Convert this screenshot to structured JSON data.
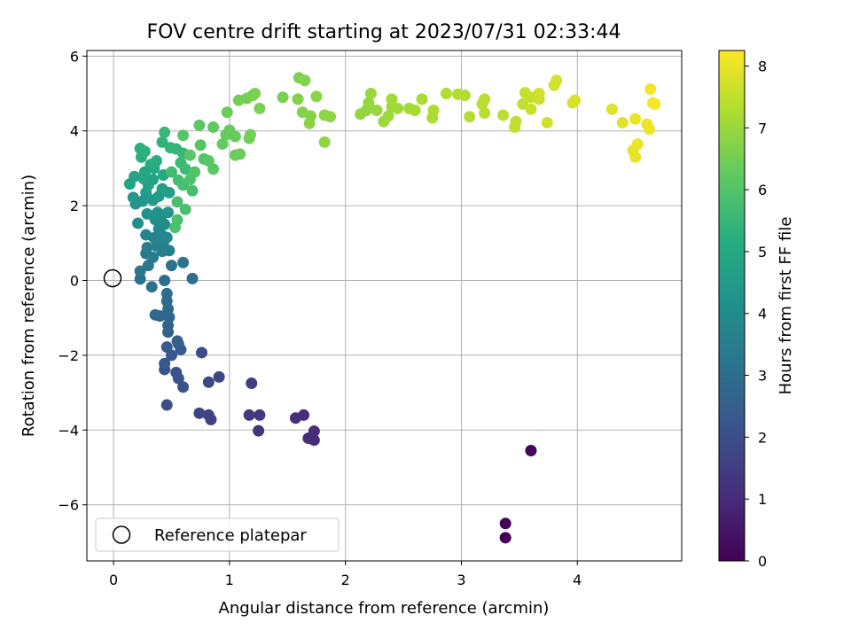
{
  "chart_data": {
    "type": "scatter",
    "title": "FOV centre drift starting at 2023/07/31 02:33:44",
    "xlabel": "Angular distance from reference (arcmin)",
    "ylabel": "Rotation from reference (arcmin)",
    "xlim": [
      -0.23,
      4.9
    ],
    "ylim": [
      -7.5,
      6.15
    ],
    "xticks": [
      "0",
      "1",
      "2",
      "3",
      "4"
    ],
    "yticks": [
      "−6",
      "−4",
      "−2",
      "0",
      "2",
      "4",
      "6"
    ],
    "grid": true,
    "legend": {
      "label": "Reference platepar",
      "location": "lower left"
    },
    "reference_point": [
      0,
      0
    ],
    "colorbar": {
      "label": "Hours from first FF file",
      "colormap": "viridis",
      "range": [
        0,
        8.25
      ],
      "ticks": [
        "0",
        "1",
        "2",
        "3",
        "4",
        "5",
        "6",
        "7",
        "8"
      ]
    },
    "points": [
      [
        3.38,
        -6.88,
        0.0
      ],
      [
        3.38,
        -6.5,
        0.05
      ],
      [
        3.6,
        -4.55,
        0.15
      ],
      [
        1.73,
        -4.27,
        1.0
      ],
      [
        1.68,
        -4.22,
        1.02
      ],
      [
        1.73,
        -4.03,
        1.05
      ],
      [
        1.64,
        -3.6,
        1.1
      ],
      [
        1.57,
        -3.68,
        1.12
      ],
      [
        1.25,
        -4.02,
        1.3
      ],
      [
        1.26,
        -3.6,
        1.35
      ],
      [
        1.17,
        -3.6,
        1.4
      ],
      [
        1.19,
        -2.75,
        1.5
      ],
      [
        0.84,
        -3.72,
        1.6
      ],
      [
        0.82,
        -3.6,
        1.65
      ],
      [
        0.74,
        -3.55,
        1.7
      ],
      [
        0.91,
        -2.58,
        1.75
      ],
      [
        0.82,
        -2.72,
        1.8
      ],
      [
        0.76,
        -1.93,
        1.9
      ],
      [
        0.46,
        -3.33,
        2.0
      ],
      [
        0.6,
        -2.85,
        2.05
      ],
      [
        0.56,
        -2.62,
        2.1
      ],
      [
        0.54,
        -2.46,
        2.15
      ],
      [
        0.44,
        -2.38,
        2.2
      ],
      [
        0.44,
        -2.22,
        2.25
      ],
      [
        0.5,
        -2.0,
        2.3
      ],
      [
        0.58,
        -1.85,
        2.35
      ],
      [
        0.46,
        -1.78,
        2.4
      ],
      [
        0.56,
        -1.7,
        2.45
      ],
      [
        0.55,
        -1.62,
        2.5
      ],
      [
        0.47,
        -1.38,
        2.6
      ],
      [
        0.47,
        -1.2,
        2.65
      ],
      [
        0.48,
        -0.98,
        2.7
      ],
      [
        0.4,
        -0.95,
        2.75
      ],
      [
        0.36,
        -0.92,
        2.8
      ],
      [
        0.47,
        -0.76,
        2.85
      ],
      [
        0.46,
        -0.55,
        2.9
      ],
      [
        0.46,
        -0.35,
        2.95
      ],
      [
        0.44,
        0.0,
        3.0
      ],
      [
        0.68,
        0.05,
        3.05
      ],
      [
        0.23,
        0.04,
        3.1
      ],
      [
        0.33,
        -0.17,
        3.12
      ],
      [
        0.6,
        0.48,
        3.15
      ],
      [
        0.5,
        0.4,
        3.2
      ],
      [
        0.23,
        0.25,
        3.25
      ],
      [
        0.3,
        0.4,
        3.3
      ],
      [
        0.28,
        0.72,
        3.35
      ],
      [
        0.34,
        0.62,
        3.4
      ],
      [
        0.42,
        0.78,
        3.45
      ],
      [
        0.48,
        0.8,
        3.5
      ],
      [
        0.29,
        0.88,
        3.55
      ],
      [
        0.37,
        0.92,
        3.6
      ],
      [
        0.43,
        1.02,
        3.65
      ],
      [
        0.35,
        1.14,
        3.7
      ],
      [
        0.28,
        1.22,
        3.75
      ],
      [
        0.42,
        1.2,
        3.8
      ],
      [
        0.46,
        1.15,
        3.85
      ],
      [
        0.39,
        1.38,
        3.9
      ],
      [
        0.44,
        1.5,
        3.95
      ],
      [
        0.36,
        1.63,
        4.0
      ],
      [
        0.21,
        1.53,
        4.05
      ],
      [
        0.41,
        1.7,
        4.1
      ],
      [
        0.29,
        1.78,
        4.15
      ],
      [
        0.38,
        1.82,
        4.2
      ],
      [
        0.47,
        1.82,
        4.25
      ],
      [
        0.19,
        2.05,
        4.3
      ],
      [
        0.25,
        2.12,
        4.35
      ],
      [
        0.34,
        2.15,
        4.4
      ],
      [
        0.17,
        2.22,
        4.45
      ],
      [
        0.39,
        2.25,
        4.5
      ],
      [
        0.28,
        2.35,
        4.55
      ],
      [
        0.48,
        2.35,
        4.6
      ],
      [
        0.42,
        2.45,
        4.65
      ],
      [
        0.3,
        2.55,
        4.7
      ],
      [
        0.34,
        2.7,
        4.75
      ],
      [
        0.14,
        2.58,
        4.8
      ],
      [
        0.18,
        2.78,
        4.85
      ],
      [
        0.26,
        2.72,
        4.9
      ],
      [
        0.27,
        2.9,
        4.95
      ],
      [
        0.35,
        3.0,
        5.0
      ],
      [
        0.43,
        2.82,
        5.05
      ],
      [
        0.32,
        3.1,
        5.1
      ],
      [
        0.37,
        3.2,
        5.15
      ],
      [
        0.24,
        3.3,
        5.2
      ],
      [
        0.23,
        3.53,
        5.25
      ],
      [
        0.27,
        3.45,
        5.3
      ],
      [
        0.42,
        3.7,
        5.35
      ],
      [
        0.49,
        3.55,
        5.4
      ],
      [
        0.54,
        3.52,
        5.45
      ],
      [
        0.6,
        3.4,
        5.5
      ],
      [
        0.44,
        3.96,
        5.55
      ],
      [
        0.58,
        3.15,
        5.6
      ],
      [
        0.62,
        2.98,
        5.65
      ],
      [
        0.5,
        2.9,
        5.7
      ],
      [
        0.56,
        2.68,
        5.72
      ],
      [
        0.6,
        2.55,
        5.75
      ],
      [
        0.68,
        2.4,
        5.8
      ],
      [
        0.55,
        2.1,
        5.82
      ],
      [
        0.62,
        1.9,
        5.85
      ],
      [
        0.55,
        1.62,
        5.88
      ],
      [
        0.53,
        1.42,
        5.9
      ],
      [
        0.66,
        2.7,
        5.95
      ],
      [
        0.7,
        2.9,
        5.98
      ],
      [
        0.78,
        3.25,
        6.0
      ],
      [
        0.75,
        3.62,
        6.05
      ],
      [
        0.6,
        3.88,
        6.08
      ],
      [
        0.66,
        3.35,
        6.1
      ],
      [
        0.82,
        3.2,
        6.12
      ],
      [
        0.86,
        2.98,
        6.15
      ],
      [
        0.74,
        4.15,
        6.2
      ],
      [
        0.86,
        4.1,
        6.25
      ],
      [
        0.94,
        3.65,
        6.28
      ],
      [
        0.97,
        3.9,
        6.3
      ],
      [
        1.0,
        4.02,
        6.32
      ],
      [
        1.05,
        3.85,
        6.35
      ],
      [
        0.98,
        4.5,
        6.38
      ],
      [
        1.05,
        3.35,
        6.4
      ],
      [
        1.09,
        3.38,
        6.42
      ],
      [
        1.17,
        3.8,
        6.45
      ],
      [
        1.18,
        3.9,
        6.48
      ],
      [
        1.08,
        4.82,
        6.5
      ],
      [
        1.15,
        4.87,
        6.52
      ],
      [
        1.2,
        4.95,
        6.55
      ],
      [
        1.22,
        5.0,
        6.58
      ],
      [
        1.26,
        4.6,
        6.6
      ],
      [
        1.46,
        4.9,
        6.62
      ],
      [
        1.6,
        5.42,
        6.65
      ],
      [
        1.65,
        5.35,
        6.68
      ],
      [
        1.59,
        4.85,
        6.7
      ],
      [
        1.63,
        4.5,
        6.72
      ],
      [
        1.7,
        4.4,
        6.75
      ],
      [
        1.69,
        4.2,
        6.78
      ],
      [
        1.75,
        4.92,
        6.8
      ],
      [
        1.82,
        4.42,
        6.82
      ],
      [
        1.87,
        4.38,
        6.85
      ],
      [
        1.82,
        3.7,
        6.88
      ],
      [
        2.13,
        4.45,
        6.9
      ],
      [
        2.18,
        4.55,
        6.93
      ],
      [
        2.2,
        4.75,
        6.95
      ],
      [
        2.22,
        5.0,
        6.98
      ],
      [
        2.27,
        4.55,
        7.0
      ],
      [
        2.33,
        4.25,
        7.02
      ],
      [
        2.37,
        4.4,
        7.05
      ],
      [
        2.4,
        4.65,
        7.08
      ],
      [
        2.45,
        4.6,
        7.1
      ],
      [
        2.4,
        4.85,
        7.12
      ],
      [
        2.55,
        4.6,
        7.15
      ],
      [
        2.6,
        4.55,
        7.18
      ],
      [
        2.66,
        4.85,
        7.2
      ],
      [
        2.75,
        4.35,
        7.22
      ],
      [
        2.76,
        4.55,
        7.25
      ],
      [
        2.87,
        5.0,
        7.28
      ],
      [
        2.97,
        4.98,
        7.3
      ],
      [
        3.03,
        4.95,
        7.32
      ],
      [
        3.07,
        4.38,
        7.35
      ],
      [
        3.18,
        4.72,
        7.38
      ],
      [
        3.2,
        4.85,
        7.4
      ],
      [
        3.2,
        4.48,
        7.42
      ],
      [
        3.36,
        4.42,
        7.45
      ],
      [
        3.46,
        4.1,
        7.48
      ],
      [
        3.47,
        4.25,
        7.5
      ],
      [
        3.53,
        4.72,
        7.52
      ],
      [
        3.55,
        5.02,
        7.55
      ],
      [
        3.6,
        4.9,
        7.58
      ],
      [
        3.6,
        4.58,
        7.6
      ],
      [
        3.67,
        4.85,
        7.62
      ],
      [
        3.67,
        5.0,
        7.65
      ],
      [
        3.74,
        4.22,
        7.68
      ],
      [
        3.8,
        5.22,
        7.7
      ],
      [
        3.82,
        5.35,
        7.72
      ],
      [
        3.96,
        4.75,
        7.75
      ],
      [
        3.98,
        4.82,
        7.78
      ],
      [
        4.3,
        4.58,
        7.85
      ],
      [
        4.39,
        4.22,
        7.9
      ],
      [
        4.48,
        3.48,
        7.95
      ],
      [
        4.5,
        3.3,
        7.98
      ],
      [
        4.5,
        4.32,
        8.0
      ],
      [
        4.52,
        3.65,
        8.02
      ],
      [
        4.6,
        4.18,
        8.05
      ],
      [
        4.62,
        4.05,
        8.08
      ],
      [
        4.63,
        5.12,
        8.12
      ],
      [
        4.65,
        4.75,
        8.15
      ],
      [
        4.67,
        4.72,
        8.2
      ]
    ]
  }
}
